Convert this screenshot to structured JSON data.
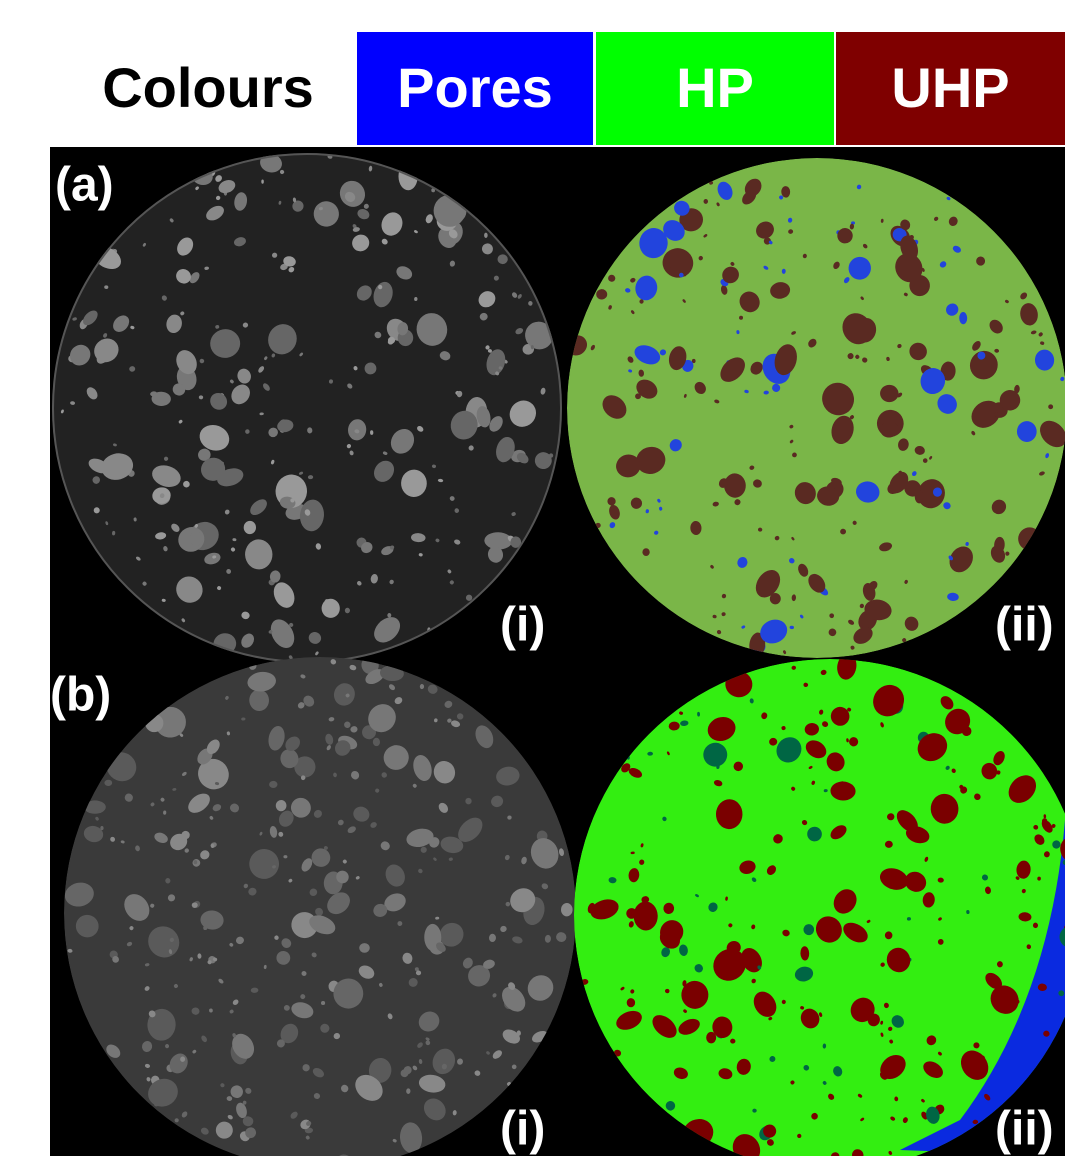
{
  "header": {
    "title": "Colours",
    "legend": [
      {
        "label": "Pores",
        "color": "#0000ff"
      },
      {
        "label": "HP",
        "color": "#00ff00"
      },
      {
        "label": "UHP",
        "color": "#7f0000"
      }
    ]
  },
  "panels": [
    {
      "label": "(a)",
      "images": [
        {
          "label": "(i)"
        },
        {
          "label": "(ii)"
        }
      ]
    },
    {
      "label": "(b)",
      "images": [
        {
          "label": "(i)"
        },
        {
          "label": "(ii)"
        }
      ]
    }
  ]
}
